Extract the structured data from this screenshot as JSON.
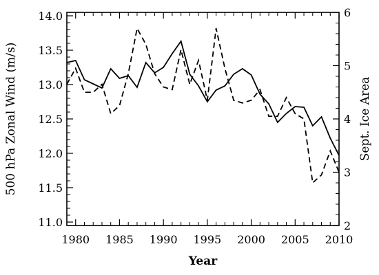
{
  "chart_data": {
    "type": "line",
    "xlabel": "Year",
    "ylabel_left": "500 hPa Zonal Wind (m/s)",
    "ylabel_right": "Sept. Ice Area",
    "xlim": [
      1979,
      2010
    ],
    "ylim_left": [
      10.95,
      14.05
    ],
    "ylim_right": [
      2.0,
      6.0
    ],
    "x_ticks": [
      1980,
      1985,
      1990,
      1995,
      2000,
      2005,
      2010
    ],
    "y_left_ticks": [
      "11.0",
      "11.5",
      "12.0",
      "12.5",
      "13.0",
      "13.5",
      "14.0"
    ],
    "y_right_ticks": [
      "2",
      "3",
      "4",
      "5",
      "6"
    ],
    "grid": false,
    "legend": "none",
    "series": [
      {
        "axis": "left",
        "style": "solid",
        "x": [
          1979,
          1980,
          1981,
          1982,
          1983,
          1984,
          1985,
          1986,
          1987,
          1988,
          1989,
          1990,
          1991,
          1992,
          1993,
          1994,
          1995,
          1996,
          1997,
          1998,
          1999,
          2000,
          2001,
          2002,
          2003,
          2004,
          2005,
          2006,
          2007,
          2008,
          2009,
          2010
        ],
        "values": [
          13.32,
          13.35,
          13.07,
          13.01,
          12.95,
          13.23,
          13.09,
          13.13,
          12.96,
          13.32,
          13.17,
          13.25,
          13.45,
          13.63,
          13.15,
          12.98,
          12.75,
          12.92,
          12.98,
          13.15,
          13.23,
          13.14,
          12.86,
          12.72,
          12.45,
          12.58,
          12.68,
          12.67,
          12.4,
          12.53,
          12.22,
          11.97
        ]
      },
      {
        "axis": "right",
        "style": "dashed",
        "x": [
          1979,
          1980,
          1981,
          1982,
          1983,
          1984,
          1985,
          1986,
          1987,
          1988,
          1989,
          1990,
          1991,
          1992,
          1993,
          1994,
          1995,
          1996,
          1997,
          1998,
          1999,
          2000,
          2001,
          2002,
          2003,
          2004,
          2005,
          2006,
          2007,
          2008,
          2009,
          2010
        ],
        "values": [
          4.65,
          4.95,
          4.5,
          4.5,
          4.65,
          4.1,
          4.25,
          4.85,
          5.7,
          5.4,
          4.85,
          4.6,
          4.55,
          5.3,
          4.65,
          5.1,
          4.35,
          5.7,
          4.95,
          4.35,
          4.3,
          4.35,
          4.55,
          4.05,
          4.05,
          4.4,
          4.1,
          4.0,
          2.8,
          2.95,
          3.4,
          3.0
        ]
      }
    ]
  }
}
